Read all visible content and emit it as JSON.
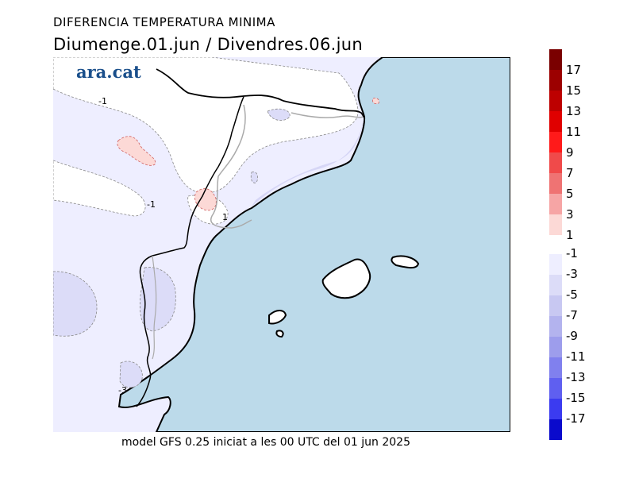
{
  "header": {
    "title": "DIFERENCIA TEMPERATURA MINIMA",
    "subtitle": "Diumenge.01.jun / Divendres.06.jun"
  },
  "logo": {
    "text": "ara.cat"
  },
  "map": {
    "contour_labels": [
      "-1",
      "-1",
      "1",
      "-3"
    ]
  },
  "caption": "model GFS 0.25 iniciat a les 00 UTC del 01 jun 2025",
  "colorbar": {
    "warm_labels": [
      "17",
      "15",
      "13",
      "11",
      "9",
      "7",
      "5",
      "3",
      "1"
    ],
    "cool_labels": [
      "-1",
      "-3",
      "-5",
      "-7",
      "-9",
      "-11",
      "-13",
      "-15",
      "-17"
    ],
    "warm_colors": [
      "#7a0000",
      "#9c0000",
      "#bd0000",
      "#e00000",
      "#ff1a1a",
      "#f04a4a",
      "#ef7373",
      "#f6a5a5",
      "#fcd9d6"
    ],
    "cool_colors": [
      "#eeeeff",
      "#dcdcf8",
      "#c8c8f2",
      "#b3b3ee",
      "#9d9dec",
      "#8080ee",
      "#5f5ff0",
      "#3b3bf0",
      "#0a0acc"
    ],
    "sea_color": "#bcdaea",
    "land_color": "#eeeeff"
  }
}
